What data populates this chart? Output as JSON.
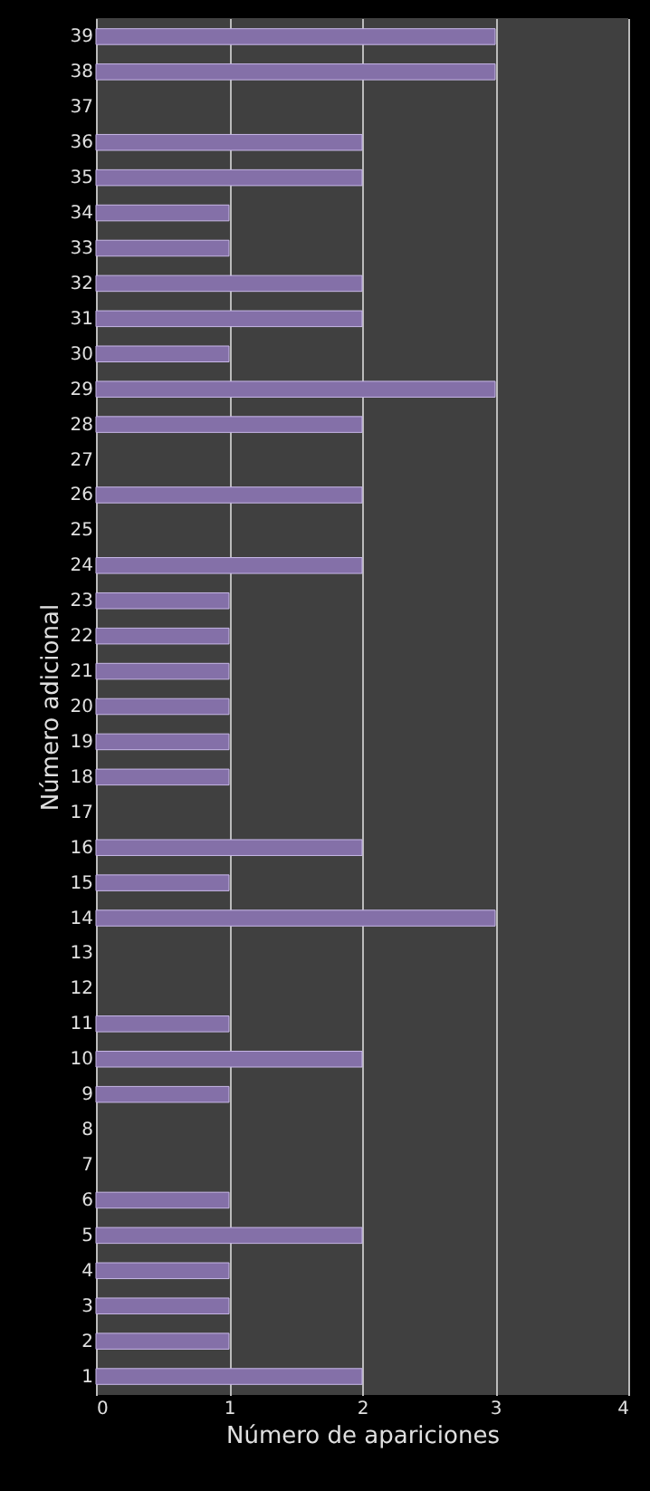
{
  "chart_data": {
    "type": "bar",
    "orientation": "horizontal",
    "xlabel": "Número  de apariciones",
    "ylabel": "Número  adicional",
    "categories": [
      "39",
      "38",
      "37",
      "36",
      "35",
      "34",
      "33",
      "32",
      "31",
      "30",
      "29",
      "28",
      "27",
      "26",
      "25",
      "24",
      "23",
      "22",
      "21",
      "20",
      "19",
      "18",
      "17",
      "16",
      "15",
      "14",
      "13",
      "12",
      "11",
      "10",
      "9",
      "8",
      "7",
      "6",
      "5",
      "4",
      "3",
      "2",
      "1"
    ],
    "values": [
      3,
      3,
      null,
      2,
      2,
      1,
      1,
      2,
      2,
      1,
      3,
      2,
      null,
      2,
      null,
      2,
      1,
      1,
      1,
      1,
      1,
      1,
      null,
      2,
      1,
      3,
      null,
      null,
      1,
      2,
      1,
      null,
      null,
      1,
      2,
      1,
      1,
      1,
      2
    ],
    "color": "#8470a8",
    "xlim": [
      0,
      4
    ],
    "xticks": [
      0,
      1,
      2,
      3,
      4
    ],
    "grid": "x"
  }
}
